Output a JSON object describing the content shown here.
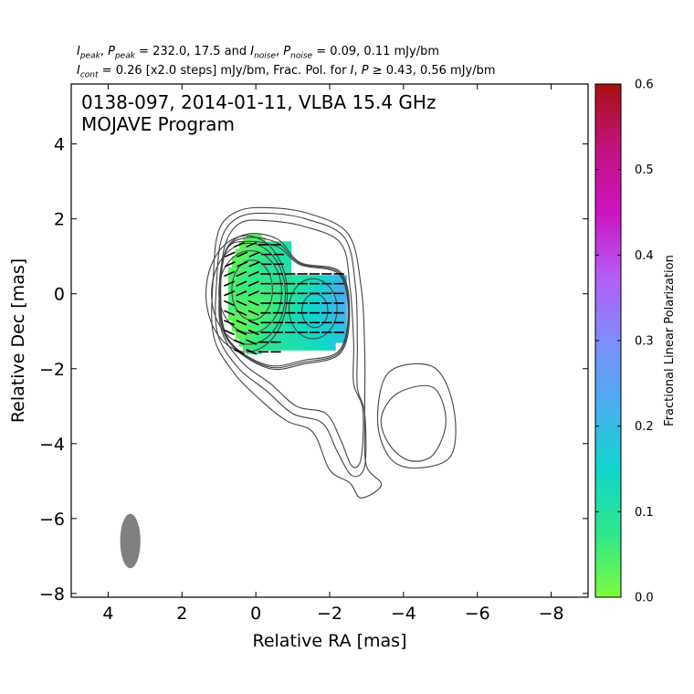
{
  "chart_data": {
    "type": "heatmap",
    "header": {
      "line1": {
        "l1": "I",
        "l1sub": "peak",
        "t1": ", ",
        "l2": "P",
        "l2sub": "peak",
        "t2": " = 232.0, 17.5 and ",
        "l3": "I",
        "l3sub": "noise",
        "t3": ", ",
        "l4": "P",
        "l4sub": "noise",
        "t4": " = 0.09, 0.11 mJy/bm"
      },
      "line2": {
        "l1": "I",
        "l1sub": "cont",
        "t1": " = 0.26 [x2.0 steps] mJy/bm, Frac. Pol. for ",
        "l2": "I",
        "t2": ", ",
        "l3": "P",
        "t3": " ≥ 0.43, 0.56 mJy/bm"
      }
    },
    "title_lines": [
      "0138-097, 2014-01-11, VLBA 15.4 GHz",
      "MOJAVE Program"
    ],
    "xlabel": "Relative RA [mas]",
    "ylabel": "Relative Dec [mas]",
    "xlim": [
      5,
      -9
    ],
    "ylim": [
      -8.1,
      5.6
    ],
    "xticks": [
      4,
      2,
      0,
      -2,
      -4,
      -6,
      -8
    ],
    "yticks": [
      4,
      2,
      0,
      -2,
      -4,
      -6,
      -8
    ],
    "colorbar": {
      "label": "Fractional Linear Polarization",
      "range": [
        0.0,
        0.6
      ],
      "ticks": [
        0.0,
        0.1,
        0.2,
        0.3,
        0.4,
        0.5,
        0.6
      ],
      "colors": [
        "#7cfc3c",
        "#2ee68c",
        "#10d6cc",
        "#4aaef0",
        "#7f8dfb",
        "#b45cf4",
        "#cc14c0",
        "#c01280",
        "#a81010"
      ]
    },
    "contour_base_mjy": 0.26,
    "contour_step_factor": 2.0,
    "core_contours": [
      {
        "x": 0.1,
        "y": 0.1,
        "rx": 0.55,
        "ry": 0.8
      },
      {
        "x": 0.15,
        "y": 0.05,
        "rx": 0.85,
        "ry": 1.1
      },
      {
        "x": 0.2,
        "y": 0.0,
        "rx": 1.0,
        "ry": 1.35
      },
      {
        "x": 0.25,
        "y": 0.0,
        "rx": 1.1,
        "ry": 1.55
      }
    ],
    "knot_contours": [
      {
        "x": -1.6,
        "y": -0.45,
        "rx": 0.35,
        "ry": 0.45
      },
      {
        "x": -1.55,
        "y": -0.4,
        "rx": 0.65,
        "ry": 0.8
      }
    ],
    "outer_contours": [
      [
        [
          -0.3,
          1.95
        ],
        [
          -1.3,
          1.8
        ],
        [
          -2.3,
          1.35
        ],
        [
          -2.55,
          0.2
        ],
        [
          -2.65,
          -1.3
        ],
        [
          -2.65,
          -2.4
        ],
        [
          -2.9,
          -3.1
        ],
        [
          -2.85,
          -4.4
        ],
        [
          -2.6,
          -4.6
        ],
        [
          -2.3,
          -3.9
        ],
        [
          -1.9,
          -3.2
        ],
        [
          -1.1,
          -3.0
        ],
        [
          -0.4,
          -2.4
        ],
        [
          0.4,
          -1.8
        ],
        [
          0.95,
          -0.9
        ],
        [
          0.95,
          0.5
        ],
        [
          0.8,
          1.4
        ],
        [
          0.4,
          1.9
        ]
      ],
      [
        [
          -0.3,
          2.15
        ],
        [
          -1.35,
          2.0
        ],
        [
          -2.4,
          1.5
        ],
        [
          -2.7,
          0.2
        ],
        [
          -2.75,
          -1.35
        ],
        [
          -2.75,
          -2.5
        ],
        [
          -2.95,
          -3.2
        ],
        [
          -2.95,
          -4.6
        ],
        [
          -2.6,
          -4.85
        ],
        [
          -2.2,
          -4.2
        ],
        [
          -1.8,
          -3.45
        ],
        [
          -1.0,
          -3.2
        ],
        [
          -0.3,
          -2.6
        ],
        [
          0.5,
          -1.95
        ],
        [
          1.05,
          -1.0
        ],
        [
          1.05,
          0.5
        ],
        [
          0.9,
          1.55
        ],
        [
          0.45,
          2.05
        ]
      ],
      [
        [
          -0.3,
          2.3
        ],
        [
          -1.4,
          2.15
        ],
        [
          -2.5,
          1.6
        ],
        [
          -2.85,
          0.2
        ],
        [
          -2.95,
          -1.5
        ],
        [
          -2.95,
          -3.5
        ],
        [
          -3.0,
          -4.6
        ],
        [
          -3.4,
          -5.1
        ],
        [
          -2.85,
          -5.45
        ],
        [
          -2.55,
          -5.05
        ],
        [
          -2.0,
          -4.7
        ],
        [
          -1.55,
          -3.7
        ],
        [
          -0.85,
          -3.4
        ],
        [
          -0.2,
          -2.9
        ],
        [
          0.6,
          -2.1
        ],
        [
          1.15,
          -1.1
        ],
        [
          1.15,
          0.5
        ],
        [
          1.0,
          1.7
        ],
        [
          0.5,
          2.2
        ]
      ]
    ],
    "southern_component": [
      [
        [
          -3.6,
          -2.1
        ],
        [
          -4.8,
          -1.95
        ],
        [
          -5.35,
          -3.0
        ],
        [
          -5.3,
          -4.3
        ],
        [
          -4.4,
          -4.65
        ],
        [
          -3.65,
          -4.4
        ],
        [
          -3.3,
          -3.4
        ]
      ],
      [
        [
          -3.85,
          -2.65
        ],
        [
          -4.8,
          -2.5
        ],
        [
          -5.15,
          -3.4
        ],
        [
          -4.8,
          -4.3
        ],
        [
          -4.15,
          -4.45
        ],
        [
          -3.6,
          -4.0
        ],
        [
          -3.4,
          -3.3
        ]
      ]
    ],
    "polarization_region": {
      "x_range": [
        0.7,
        -2.5
      ],
      "y_range": [
        -1.65,
        1.6
      ],
      "fractional_pol_range": [
        0.04,
        0.22
      ]
    },
    "evpa_vectors_deg": 90,
    "beam": {
      "x": 3.4,
      "y": -6.6,
      "major_mas": 1.45,
      "minor_mas": 0.55,
      "pa_deg": 0
    }
  }
}
